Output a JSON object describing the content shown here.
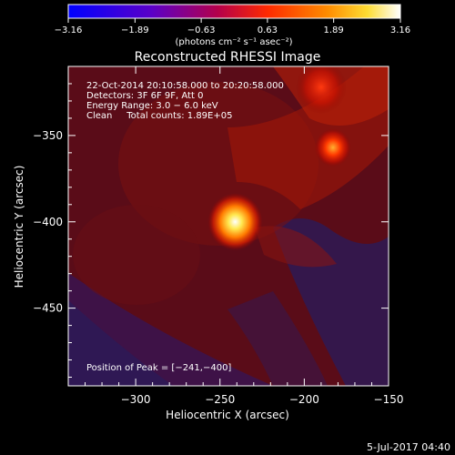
{
  "chart_data": {
    "type": "heatmap",
    "title": "Reconstructed RHESSI Image",
    "xlabel": "Heliocentric X (arcsec)",
    "ylabel": "Heliocentric Y (arcsec)",
    "xlim": [
      -340,
      -150
    ],
    "ylim": [
      -495,
      -310
    ],
    "x_ticks": [
      -300,
      -250,
      -200,
      -150
    ],
    "y_ticks": [
      -350,
      -400,
      -450
    ],
    "x_tick_labels": [
      "−300",
      "−250",
      "−200",
      "−150"
    ],
    "y_tick_labels": [
      "−350",
      "−400",
      "−450"
    ],
    "colorbar": {
      "range": [
        -3.16,
        3.16
      ],
      "ticks": [
        -3.16,
        -1.89,
        -0.63,
        0.63,
        1.89,
        3.16
      ],
      "tick_labels": [
        "−3.16",
        "−1.89",
        "−0.63",
        "0.63",
        "1.89",
        "3.16"
      ],
      "unit": "(photons cm⁻² s⁻¹ asec⁻²)"
    },
    "sources": [
      {
        "x": -241,
        "y": -400,
        "peak": 3.16,
        "label": "peak"
      },
      {
        "x": -183,
        "y": -357,
        "peak": 1.7
      },
      {
        "x": -190,
        "y": -322,
        "peak": 1.3
      }
    ],
    "annotations": [
      "22-Oct-2014 20:10:58.000 to 20:20:58.000",
      "Detectors: 3F 6F 9F, Att 0",
      "Energy Range: 3.0 − 6.0 keV",
      "Clean     Total counts: 1.89E+05"
    ],
    "peak_label": "Position of Peak = [−241,−400]",
    "footer_date": "5-Jul-2017 04:40"
  }
}
